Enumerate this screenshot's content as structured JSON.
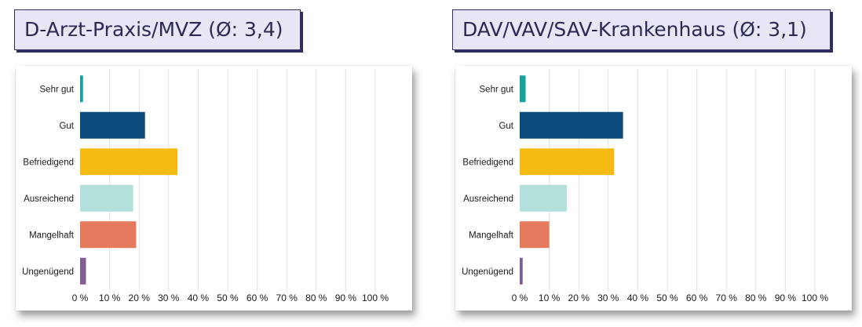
{
  "panels": [
    {
      "title": "D-Arzt-Praxis/MVZ (Ø: 3,4)"
    },
    {
      "title": "DAV/VAV/SAV-Krankenhaus (Ø: 3,1)"
    }
  ],
  "chart_data": [
    {
      "type": "bar",
      "orientation": "horizontal",
      "title": "D-Arzt-Praxis/MVZ (Ø: 3,4)",
      "categories": [
        "Sehr gut",
        "Gut",
        "Befriedigend",
        "Ausreichend",
        "Mangelhaft",
        "Ungenügend"
      ],
      "values": [
        1,
        22,
        33,
        18,
        19,
        2
      ],
      "colors": [
        "#17a2a0",
        "#0d4b7c",
        "#f5bb12",
        "#b4e0dc",
        "#e57a5c",
        "#7f5e94"
      ],
      "xlim": [
        0,
        100
      ],
      "xticks": [
        "0 %",
        "10 %",
        "20 %",
        "30 %",
        "40 %",
        "50 %",
        "60 %",
        "70 %",
        "80 %",
        "90 %",
        "100 %"
      ],
      "grid": "vertical",
      "xlabel": "",
      "ylabel": ""
    },
    {
      "type": "bar",
      "orientation": "horizontal",
      "title": "DAV/VAV/SAV-Krankenhaus (Ø: 3,1)",
      "categories": [
        "Sehr gut",
        "Gut",
        "Befriedigend",
        "Ausreichend",
        "Mangelhaft",
        "Ungenügend"
      ],
      "values": [
        2,
        35,
        32,
        16,
        10,
        1
      ],
      "colors": [
        "#17a2a0",
        "#0d4b7c",
        "#f5bb12",
        "#b4e0dc",
        "#e57a5c",
        "#7f5e94"
      ],
      "xlim": [
        0,
        100
      ],
      "xticks": [
        "0 %",
        "10 %",
        "20 %",
        "30 %",
        "40 %",
        "50 %",
        "60 %",
        "70 %",
        "80 %",
        "90 %",
        "100 %"
      ],
      "grid": "vertical",
      "xlabel": "",
      "ylabel": ""
    }
  ]
}
